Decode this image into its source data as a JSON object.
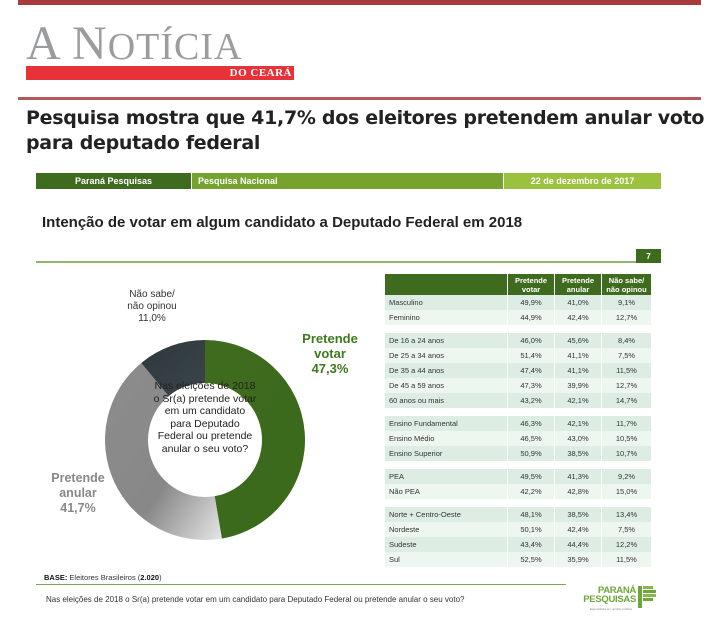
{
  "site": {
    "logo_main": "A Notícia",
    "logo_letters": [
      "A ",
      "N",
      "OTÍCIA"
    ],
    "logo_sub": "do Ceará",
    "brand_colors": {
      "rule": "#a83a3d",
      "logo_bar": "#e8323a",
      "logo_text": "#9a9c9e"
    }
  },
  "article": {
    "headline": "Pesquisa mostra que 41,7% dos eleitores pretendem anular voto para deputado federal"
  },
  "slide": {
    "band": {
      "org": "Paraná Pesquisas",
      "type": "Pesquisa Nacional",
      "date": "22 de dezembro de 2017"
    },
    "title": "Intenção de votar em algum candidato a Deputado Federal em 2018",
    "page_number": "7",
    "center_question": "Nas eleições de 2018 o Sr(a) pretende votar em um candidato para Deputado Federal ou pretende anular o seu voto?",
    "labels": {
      "nao_sabe": [
        "Não sabe/",
        "não opinou",
        "11,0%"
      ],
      "votar": [
        "Pretende",
        "votar",
        "47,3%"
      ],
      "anular": [
        "Pretende",
        "anular",
        "41,7%"
      ]
    },
    "base_label": "BASE:",
    "base_text": " Eleitores Brasileiros (",
    "base_n": "2.020",
    "base_close": ")",
    "footer_question": "Nas eleições de 2018 o Sr(a) pretende votar em um candidato para Deputado Federal ou pretende anular o seu voto?",
    "footer_logo": {
      "line1": "PARANÁ",
      "line2": "PESQUISAS",
      "tagline": "Especialista em opinião pública"
    },
    "table": {
      "headers": [
        "",
        "Pretende votar",
        "Pretende anular",
        "Não sabe/ não opinou"
      ],
      "groups": [
        [
          [
            "Masculino",
            "49,9%",
            "41,0%",
            "9,1%"
          ],
          [
            "Feminino",
            "44,9%",
            "42,4%",
            "12,7%"
          ]
        ],
        [
          [
            "De 16 a 24 anos",
            "46,0%",
            "45,6%",
            "8,4%"
          ],
          [
            "De 25 a 34 anos",
            "51,4%",
            "41,1%",
            "7,5%"
          ],
          [
            "De 35 a 44 anos",
            "47,4%",
            "41,1%",
            "11,5%"
          ],
          [
            "De 45 a 59 anos",
            "47,3%",
            "39,9%",
            "12,7%"
          ],
          [
            "60 anos ou mais",
            "43,2%",
            "42,1%",
            "14,7%"
          ]
        ],
        [
          [
            "Ensino Fundamental",
            "46,3%",
            "42,1%",
            "11,7%"
          ],
          [
            "Ensino Médio",
            "46,5%",
            "43,0%",
            "10,5%"
          ],
          [
            "Ensino Superior",
            "50,9%",
            "38,5%",
            "10,7%"
          ]
        ],
        [
          [
            "PEA",
            "49,5%",
            "41,3%",
            "9,2%"
          ],
          [
            "Não PEA",
            "42,2%",
            "42,8%",
            "15,0%"
          ]
        ],
        [
          [
            "Norte + Centro-Oeste",
            "48,1%",
            "38,5%",
            "13,4%"
          ],
          [
            "Nordeste",
            "50,1%",
            "42,4%",
            "7,5%"
          ],
          [
            "Sudeste",
            "43,4%",
            "44,4%",
            "12,2%"
          ],
          [
            "Sul",
            "52,5%",
            "35,9%",
            "11,5%"
          ]
        ]
      ]
    }
  },
  "chart_data": {
    "type": "pie",
    "title": "Intenção de votar em algum candidato a Deputado Federal em 2018",
    "donut": true,
    "categories": [
      "Pretende votar",
      "Pretende anular",
      "Não sabe/não opinou"
    ],
    "values": [
      47.3,
      41.7,
      11.0
    ],
    "colors": [
      "#3f6b1e",
      "#8a8a8a",
      "#2f383b"
    ],
    "start": "top",
    "direction": "clockwise"
  }
}
